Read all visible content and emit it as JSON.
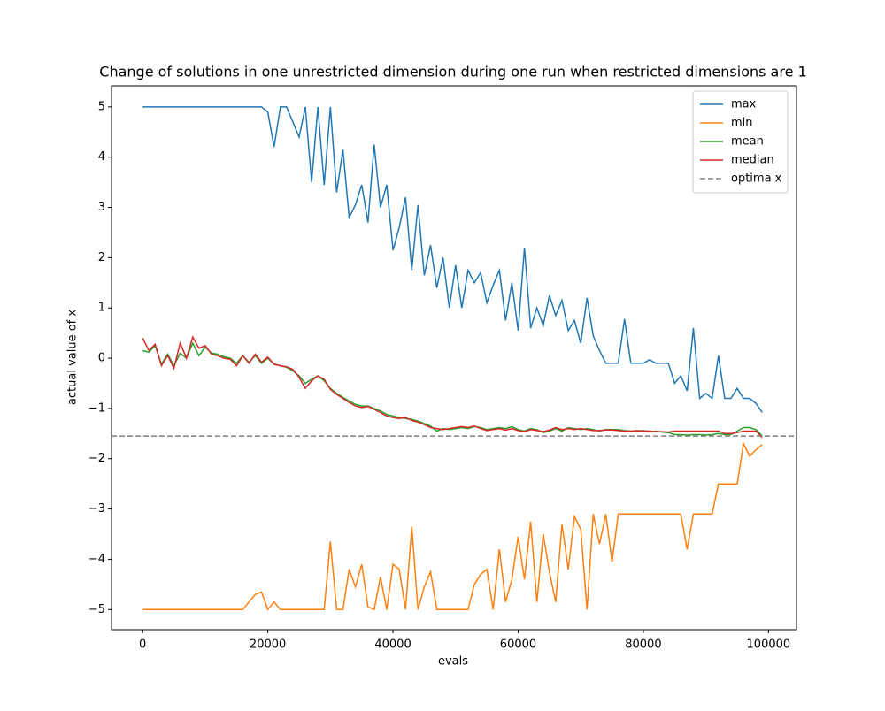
{
  "chart_data": {
    "type": "line",
    "title": "Change of solutions in one unrestricted dimension during one run when restricted dimensions are 1",
    "xlabel": "evals",
    "ylabel": "actual value of x",
    "x": [
      0,
      1000,
      2000,
      3000,
      4000,
      5000,
      6000,
      7000,
      8000,
      9000,
      10000,
      11000,
      12000,
      13000,
      14000,
      15000,
      16000,
      17000,
      18000,
      19000,
      20000,
      21000,
      22000,
      23000,
      24000,
      25000,
      26000,
      27000,
      28000,
      29000,
      30000,
      31000,
      32000,
      33000,
      34000,
      35000,
      36000,
      37000,
      38000,
      39000,
      40000,
      41000,
      42000,
      43000,
      44000,
      45000,
      46000,
      47000,
      48000,
      49000,
      50000,
      51000,
      52000,
      53000,
      54000,
      55000,
      56000,
      57000,
      58000,
      59000,
      60000,
      61000,
      62000,
      63000,
      64000,
      65000,
      66000,
      67000,
      68000,
      69000,
      70000,
      71000,
      72000,
      73000,
      74000,
      75000,
      76000,
      77000,
      78000,
      79000,
      80000,
      81000,
      82000,
      83000,
      84000,
      85000,
      86000,
      87000,
      88000,
      89000,
      90000,
      91000,
      92000,
      93000,
      94000,
      95000,
      96000,
      97000,
      98000,
      99000
    ],
    "series": [
      {
        "name": "max",
        "color": "#1f77b4",
        "values": [
          5,
          5,
          5,
          5,
          5,
          5,
          5,
          5,
          5,
          5,
          5,
          5,
          5,
          5,
          5,
          5,
          5,
          5,
          5,
          5,
          4.9,
          4.2,
          5,
          5,
          4.7,
          4.4,
          5,
          3.5,
          5,
          3.45,
          5,
          3.3,
          4.15,
          2.8,
          3.05,
          3.45,
          2.7,
          4.25,
          3.0,
          3.45,
          2.15,
          2.6,
          3.2,
          1.75,
          3.05,
          1.65,
          2.25,
          1.4,
          2.0,
          1.0,
          1.85,
          1.0,
          1.75,
          1.5,
          1.7,
          1.1,
          1.45,
          1.75,
          0.75,
          1.5,
          0.55,
          2.2,
          0.6,
          1.0,
          0.65,
          1.25,
          0.85,
          1.15,
          0.55,
          0.75,
          0.3,
          1.2,
          0.45,
          0.15,
          -0.1,
          -0.1,
          -0.1,
          0.78,
          -0.1,
          -0.1,
          -0.1,
          -0.03,
          -0.1,
          -0.1,
          -0.1,
          -0.5,
          -0.35,
          -0.65,
          0.6,
          -0.8,
          -0.7,
          -0.8,
          0.05,
          -0.8,
          -0.8,
          -0.6,
          -0.8,
          -0.8,
          -0.9,
          -1.08
        ]
      },
      {
        "name": "min",
        "color": "#ff7f0e",
        "values": [
          -5,
          -5,
          -5,
          -5,
          -5,
          -5,
          -5,
          -5,
          -5,
          -5,
          -5,
          -5,
          -5,
          -5,
          -5,
          -5,
          -5,
          -4.85,
          -4.7,
          -4.65,
          -5,
          -4.85,
          -5,
          -5,
          -5,
          -5,
          -5,
          -5,
          -5,
          -5,
          -3.65,
          -5,
          -5,
          -4.2,
          -4.55,
          -4.1,
          -4.95,
          -5,
          -4.35,
          -5,
          -4.1,
          -4.2,
          -5,
          -3.35,
          -5,
          -4.55,
          -4.25,
          -5,
          -5,
          -5,
          -5,
          -5,
          -5,
          -4.5,
          -4.3,
          -4.2,
          -5,
          -3.8,
          -4.85,
          -4.4,
          -3.55,
          -4.4,
          -3.25,
          -4.85,
          -3.5,
          -4.25,
          -4.85,
          -3.3,
          -4.2,
          -3.15,
          -3.4,
          -5,
          -3.1,
          -3.7,
          -3.1,
          -4.05,
          -3.1,
          -3.1,
          -3.1,
          -3.1,
          -3.1,
          -3.1,
          -3.1,
          -3.1,
          -3.1,
          -3.1,
          -3.1,
          -3.8,
          -3.1,
          -3.1,
          -3.1,
          -3.1,
          -2.5,
          -2.5,
          -2.5,
          -2.5,
          -1.7,
          -1.95,
          -1.82,
          -1.72
        ]
      },
      {
        "name": "mean",
        "color": "#2ca02c",
        "values": [
          0.15,
          0.12,
          0.25,
          -0.12,
          0.08,
          -0.15,
          0.1,
          0.0,
          0.3,
          0.05,
          0.22,
          0.1,
          0.08,
          0.03,
          0.0,
          -0.1,
          0.05,
          -0.08,
          0.05,
          -0.1,
          0.0,
          -0.12,
          -0.15,
          -0.18,
          -0.25,
          -0.35,
          -0.5,
          -0.42,
          -0.35,
          -0.45,
          -0.6,
          -0.7,
          -0.78,
          -0.85,
          -0.92,
          -0.95,
          -0.95,
          -1.0,
          -1.05,
          -1.12,
          -1.15,
          -1.18,
          -1.2,
          -1.22,
          -1.25,
          -1.3,
          -1.35,
          -1.45,
          -1.4,
          -1.42,
          -1.4,
          -1.38,
          -1.4,
          -1.36,
          -1.38,
          -1.42,
          -1.4,
          -1.38,
          -1.4,
          -1.36,
          -1.42,
          -1.45,
          -1.4,
          -1.42,
          -1.48,
          -1.45,
          -1.4,
          -1.45,
          -1.38,
          -1.4,
          -1.42,
          -1.4,
          -1.42,
          -1.45,
          -1.42,
          -1.42,
          -1.42,
          -1.44,
          -1.45,
          -1.45,
          -1.44,
          -1.46,
          -1.45,
          -1.47,
          -1.48,
          -1.52,
          -1.52,
          -1.53,
          -1.52,
          -1.52,
          -1.53,
          -1.52,
          -1.5,
          -1.52,
          -1.52,
          -1.45,
          -1.38,
          -1.38,
          -1.42,
          -1.55
        ]
      },
      {
        "name": "median",
        "color": "#d62728",
        "values": [
          0.4,
          0.15,
          0.28,
          -0.15,
          0.05,
          -0.2,
          0.3,
          0.0,
          0.42,
          0.2,
          0.25,
          0.08,
          0.05,
          0.0,
          -0.02,
          -0.15,
          0.05,
          -0.1,
          0.08,
          -0.08,
          0.02,
          -0.12,
          -0.15,
          -0.17,
          -0.22,
          -0.38,
          -0.6,
          -0.45,
          -0.35,
          -0.42,
          -0.62,
          -0.72,
          -0.8,
          -0.88,
          -0.95,
          -0.98,
          -0.96,
          -1.02,
          -1.08,
          -1.15,
          -1.18,
          -1.2,
          -1.18,
          -1.24,
          -1.27,
          -1.32,
          -1.38,
          -1.4,
          -1.42,
          -1.4,
          -1.38,
          -1.36,
          -1.38,
          -1.35,
          -1.4,
          -1.44,
          -1.42,
          -1.4,
          -1.43,
          -1.4,
          -1.44,
          -1.46,
          -1.42,
          -1.44,
          -1.46,
          -1.43,
          -1.38,
          -1.42,
          -1.4,
          -1.42,
          -1.4,
          -1.42,
          -1.44,
          -1.44,
          -1.43,
          -1.43,
          -1.44,
          -1.45,
          -1.45,
          -1.44,
          -1.45,
          -1.45,
          -1.46,
          -1.46,
          -1.47,
          -1.45,
          -1.45,
          -1.45,
          -1.45,
          -1.45,
          -1.45,
          -1.45,
          -1.45,
          -1.5,
          -1.5,
          -1.48,
          -1.45,
          -1.45,
          -1.45,
          -1.58
        ]
      }
    ],
    "hline": {
      "name": "optima x",
      "value": -1.55,
      "color": "#808080"
    },
    "xlim": [
      -4975,
      104475
    ],
    "ylim": [
      -5.4,
      5.42
    ],
    "xticks": [
      0,
      20000,
      40000,
      60000,
      80000,
      100000
    ],
    "yticks": [
      {
        "value": -5,
        "label": "−5"
      },
      {
        "value": -4,
        "label": "−4"
      },
      {
        "value": -3,
        "label": "−3"
      },
      {
        "value": -2,
        "label": "−2"
      },
      {
        "value": -1,
        "label": "−1"
      },
      0,
      1,
      2,
      3,
      4,
      5
    ],
    "legend": "upper right"
  }
}
